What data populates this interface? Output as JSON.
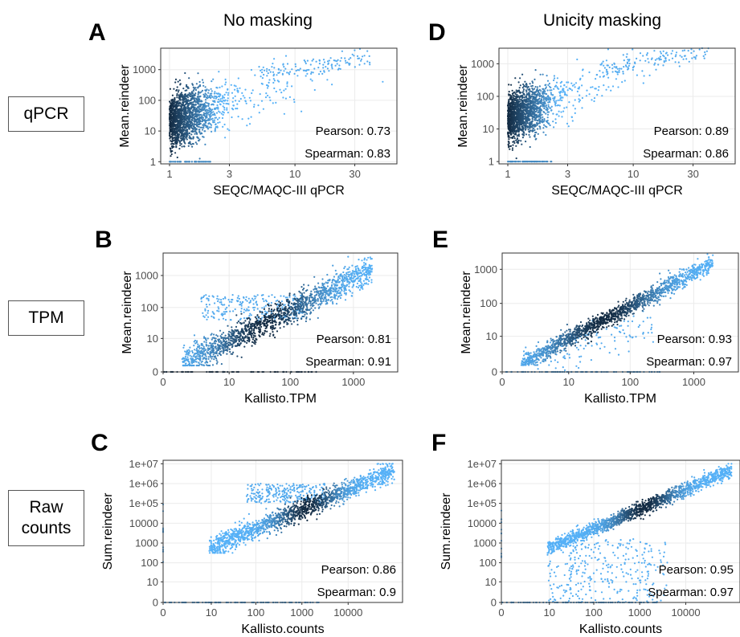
{
  "columns": [
    "No masking",
    "Unicity masking"
  ],
  "rows": [
    {
      "label_lines": [
        "qPCR"
      ]
    },
    {
      "label_lines": [
        "TPM"
      ]
    },
    {
      "label_lines": [
        "Raw",
        "counts"
      ]
    }
  ],
  "colors": {
    "light": "#56b1f7",
    "dark": "#132b43",
    "grid": "#ebebeb",
    "panel_border": "#333333"
  },
  "chart_data": [
    {
      "id": "A",
      "type": "scatter",
      "xscale": "log",
      "yscale": "log",
      "xlabel": "SEQC/MAQC-III qPCR",
      "ylabel": "Mean.reindeer",
      "xticks": [
        "1",
        "3",
        "10",
        "30"
      ],
      "yticks": [
        "1",
        "10",
        "100",
        "1000"
      ],
      "pearson": "Pearson: 0.73",
      "spearman": "Spearman: 0.83",
      "xlim": [
        0.85,
        65
      ],
      "ylim": [
        0.85,
        5000
      ]
    },
    {
      "id": "B",
      "type": "scatter",
      "xscale": "log1p",
      "yscale": "log1p",
      "xlabel": "Kallisto.TPM",
      "ylabel": "Mean.reindeer",
      "xticks": [
        "0",
        "10",
        "100",
        "1000"
      ],
      "yticks": [
        "0",
        "10",
        "100",
        "1000"
      ],
      "pearson": "Pearson: 0.81",
      "spearman": "Spearman: 0.91",
      "xlim": [
        0,
        5000
      ],
      "ylim": [
        0,
        5000
      ]
    },
    {
      "id": "C",
      "type": "scatter",
      "xscale": "log1p",
      "yscale": "log1p",
      "xlabel": "Kallisto.counts",
      "ylabel": "Sum.reindeer",
      "xticks": [
        "0",
        "10",
        "100",
        "1000",
        "10000"
      ],
      "yticks": [
        "0",
        "10",
        "100",
        "1000",
        "10000",
        "1e+05",
        "1e+06",
        "1e+07"
      ],
      "pearson": "Pearson: 0.86",
      "spearman": "Spearman: 0.9",
      "xlim": [
        0,
        150000
      ],
      "ylim": [
        0,
        15000000
      ]
    },
    {
      "id": "D",
      "type": "scatter",
      "xscale": "log",
      "yscale": "log",
      "xlabel": "SEQC/MAQC-III qPCR",
      "ylabel": "Mean.reindeer",
      "xticks": [
        "1",
        "3",
        "10",
        "30"
      ],
      "yticks": [
        "1",
        "10",
        "100",
        "1000"
      ],
      "pearson": "Pearson: 0.89",
      "spearman": "Spearman: 0.86",
      "xlim": [
        0.85,
        65
      ],
      "ylim": [
        0.85,
        3000
      ]
    },
    {
      "id": "E",
      "type": "scatter",
      "xscale": "log1p",
      "yscale": "log1p",
      "xlabel": "Kallisto.TPM",
      "ylabel": "Mean.reindeer",
      "xticks": [
        "0",
        "10",
        "100",
        "1000"
      ],
      "yticks": [
        "0",
        "10",
        "100",
        "1000"
      ],
      "pearson": "Pearson: 0.93",
      "spearman": "Spearman: 0.97",
      "xlim": [
        0,
        5000
      ],
      "ylim": [
        0,
        3000
      ]
    },
    {
      "id": "F",
      "type": "scatter",
      "xscale": "log1p",
      "yscale": "log1p",
      "xlabel": "Kallisto.counts",
      "ylabel": "Sum.reindeer",
      "xticks": [
        "0",
        "10",
        "100",
        "1000",
        "10000"
      ],
      "yticks": [
        "0",
        "10",
        "100",
        "1000",
        "10000",
        "1e+05",
        "1e+06",
        "1e+07"
      ],
      "pearson": "Pearson: 0.95",
      "spearman": "Spearman: 0.97",
      "xlim": [
        0,
        150000
      ],
      "ylim": [
        0,
        15000000
      ]
    }
  ]
}
